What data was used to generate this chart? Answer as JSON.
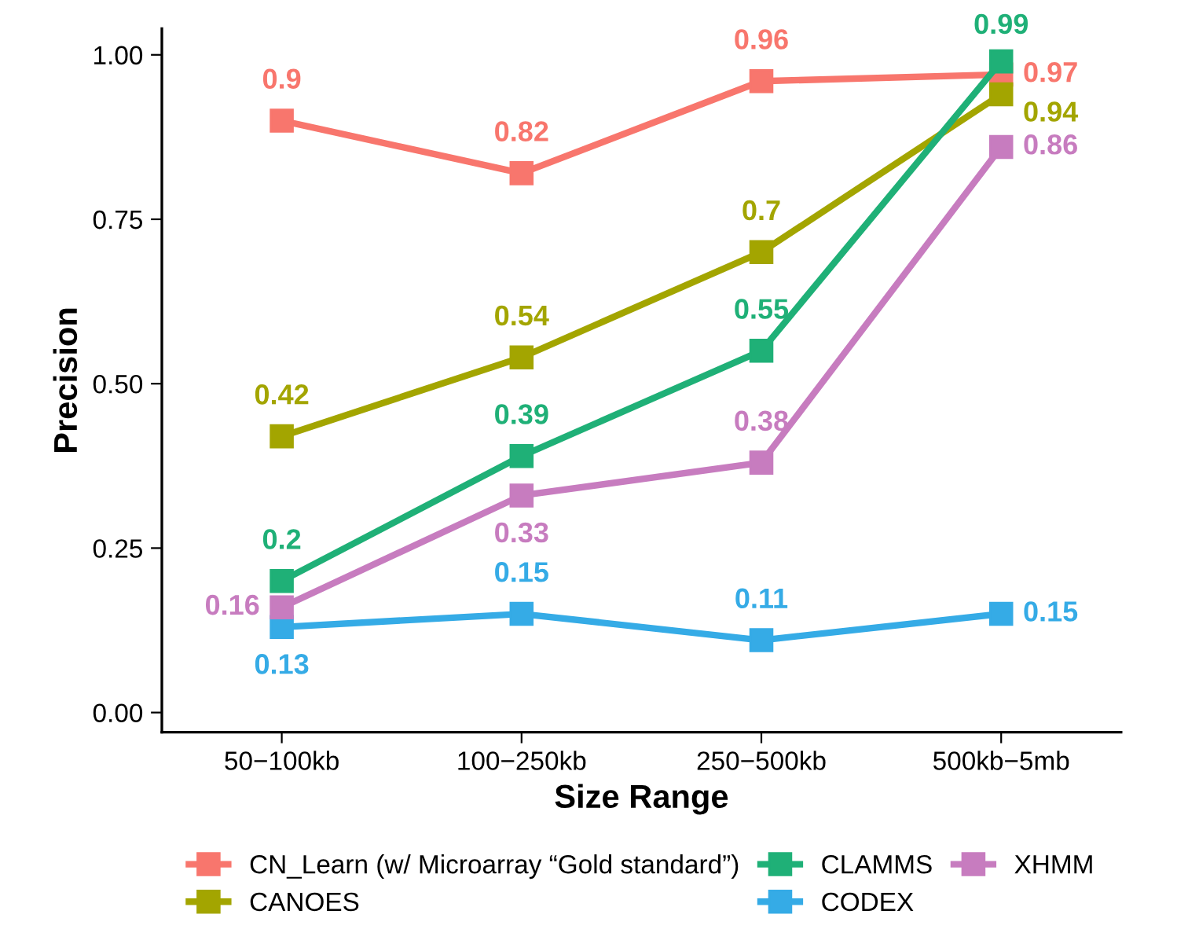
{
  "chart_data": {
    "type": "line",
    "xlabel": "Size Range",
    "ylabel": "Precision",
    "categories": [
      "50−100kb",
      "100−250kb",
      "250−500kb",
      "500kb−5mb"
    ],
    "series": [
      {
        "name": "CN_Learn (w/ Microarray “Gold standard”)",
        "color": "#f8766d",
        "values": [
          0.9,
          0.82,
          0.96,
          0.97
        ]
      },
      {
        "name": "CANOES",
        "color": "#a3a500",
        "values": [
          0.42,
          0.54,
          0.7,
          0.94
        ]
      },
      {
        "name": "CLAMMS",
        "color": "#1fb077",
        "values": [
          0.2,
          0.39,
          0.55,
          0.99
        ]
      },
      {
        "name": "CODEX",
        "color": "#35abe6",
        "values": [
          0.13,
          0.15,
          0.11,
          0.15
        ]
      },
      {
        "name": "XHMM",
        "color": "#c77cbf",
        "values": [
          0.16,
          0.33,
          0.38,
          0.86
        ]
      }
    ],
    "ylim": [
      -0.03,
      1.04
    ],
    "yticks": [
      {
        "value": 0,
        "label": "0.00"
      },
      {
        "value": 0.25,
        "label": "0.25"
      },
      {
        "value": 0.5,
        "label": "0.50"
      },
      {
        "value": 0.75,
        "label": "0.75"
      },
      {
        "value": 1,
        "label": "1.00"
      }
    ],
    "data_labels": true,
    "grid": false,
    "legend": "bottom",
    "marker": "square",
    "line_style": "solid"
  }
}
